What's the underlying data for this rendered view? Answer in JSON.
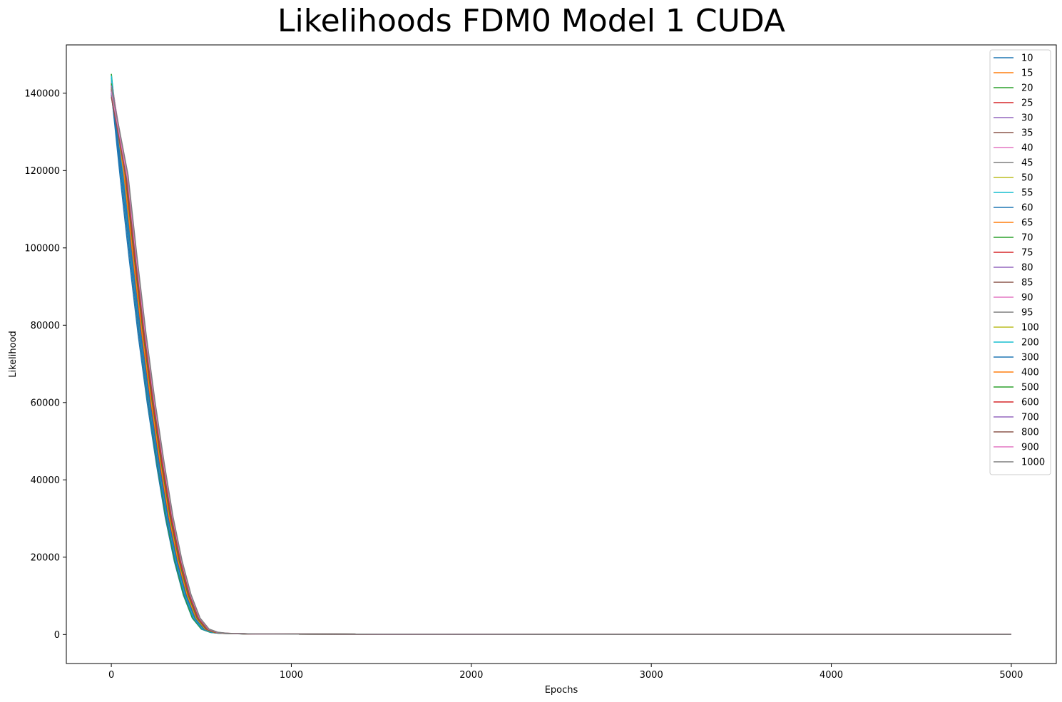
{
  "chart_data": {
    "type": "line",
    "title": "Likelihoods FDM0 Model 1 CUDA",
    "xlabel": "Epochs",
    "ylabel": "Likelihood",
    "xlim": [
      -250,
      5250
    ],
    "ylim": [
      -7500,
      152500
    ],
    "xticks": [
      0,
      1000,
      2000,
      3000,
      4000,
      5000
    ],
    "yticks": [
      0,
      20000,
      40000,
      60000,
      80000,
      100000,
      120000,
      140000
    ],
    "grid": false,
    "legend_position": "top-right",
    "x": [
      0,
      50,
      100,
      150,
      200,
      250,
      300,
      350,
      400,
      450,
      500,
      550,
      600,
      650,
      700,
      800,
      1000,
      1500,
      2000,
      3000,
      4000,
      5000
    ],
    "series": [
      {
        "name": "10",
        "color": "#1f77b4",
        "start": 140500,
        "shift": 0
      },
      {
        "name": "15",
        "color": "#ff7f0e",
        "start": 141500,
        "shift": 2
      },
      {
        "name": "20",
        "color": "#2ca02c",
        "start": 145000,
        "shift": 0
      },
      {
        "name": "25",
        "color": "#d62728",
        "start": 142000,
        "shift": 4
      },
      {
        "name": "30",
        "color": "#9467bd",
        "start": 143000,
        "shift": 5
      },
      {
        "name": "35",
        "color": "#8c564b",
        "start": 142500,
        "shift": 7
      },
      {
        "name": "40",
        "color": "#e377c2",
        "start": 144000,
        "shift": 8
      },
      {
        "name": "45",
        "color": "#7f7f7f",
        "start": 141000,
        "shift": 9
      },
      {
        "name": "50",
        "color": "#bcbd22",
        "start": 143500,
        "shift": 10
      },
      {
        "name": "55",
        "color": "#17becf",
        "start": 144500,
        "shift": 2
      },
      {
        "name": "60",
        "color": "#1f77b4",
        "start": 140000,
        "shift": 3
      },
      {
        "name": "65",
        "color": "#ff7f0e",
        "start": 142000,
        "shift": 5
      },
      {
        "name": "70",
        "color": "#2ca02c",
        "start": 143000,
        "shift": 6
      },
      {
        "name": "75",
        "color": "#d62728",
        "start": 141500,
        "shift": 8
      },
      {
        "name": "80",
        "color": "#9467bd",
        "start": 142500,
        "shift": 10
      },
      {
        "name": "85",
        "color": "#8c564b",
        "start": 139500,
        "shift": 12
      },
      {
        "name": "90",
        "color": "#e377c2",
        "start": 143000,
        "shift": 13
      },
      {
        "name": "95",
        "color": "#7f7f7f",
        "start": 141000,
        "shift": 14
      },
      {
        "name": "100",
        "color": "#bcbd22",
        "start": 142000,
        "shift": 14
      },
      {
        "name": "200",
        "color": "#17becf",
        "start": 144000,
        "shift": 4
      },
      {
        "name": "300",
        "color": "#1f77b4",
        "start": 140500,
        "shift": 6
      },
      {
        "name": "400",
        "color": "#ff7f0e",
        "start": 141500,
        "shift": 9
      },
      {
        "name": "500",
        "color": "#2ca02c",
        "start": 142500,
        "shift": 11
      },
      {
        "name": "600",
        "color": "#d62728",
        "start": 141000,
        "shift": 13
      },
      {
        "name": "700",
        "color": "#9467bd",
        "start": 142000,
        "shift": 15
      },
      {
        "name": "800",
        "color": "#8c564b",
        "start": 139000,
        "shift": 16
      },
      {
        "name": "900",
        "color": "#e377c2",
        "start": 140500,
        "shift": 17
      },
      {
        "name": "1000",
        "color": "#7f7f7f",
        "start": 141500,
        "shift": 18
      }
    ]
  }
}
